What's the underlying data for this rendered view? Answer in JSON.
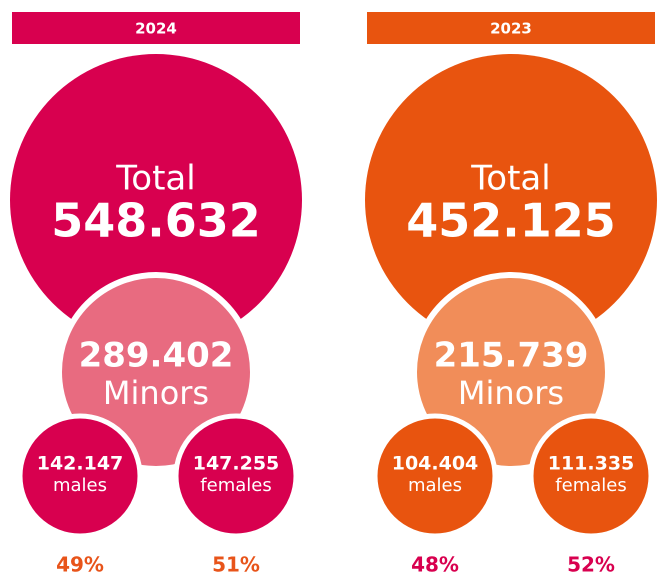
{
  "panels": [
    {
      "year": "2024",
      "total_label": "Total",
      "total": "548.632",
      "minors": "289.402",
      "minors_label": "Minors",
      "males": "142.147",
      "males_label": "males",
      "females": "147.255",
      "females_label": "females",
      "males_pct": "49%",
      "females_pct": "51%"
    },
    {
      "year": "2023",
      "total_label": "Total",
      "total": "452.125",
      "minors": "215.739",
      "minors_label": "Minors",
      "males": "104.404",
      "males_label": "males",
      "females": "111.335",
      "females_label": "females",
      "males_pct": "48%",
      "females_pct": "52%"
    }
  ]
}
